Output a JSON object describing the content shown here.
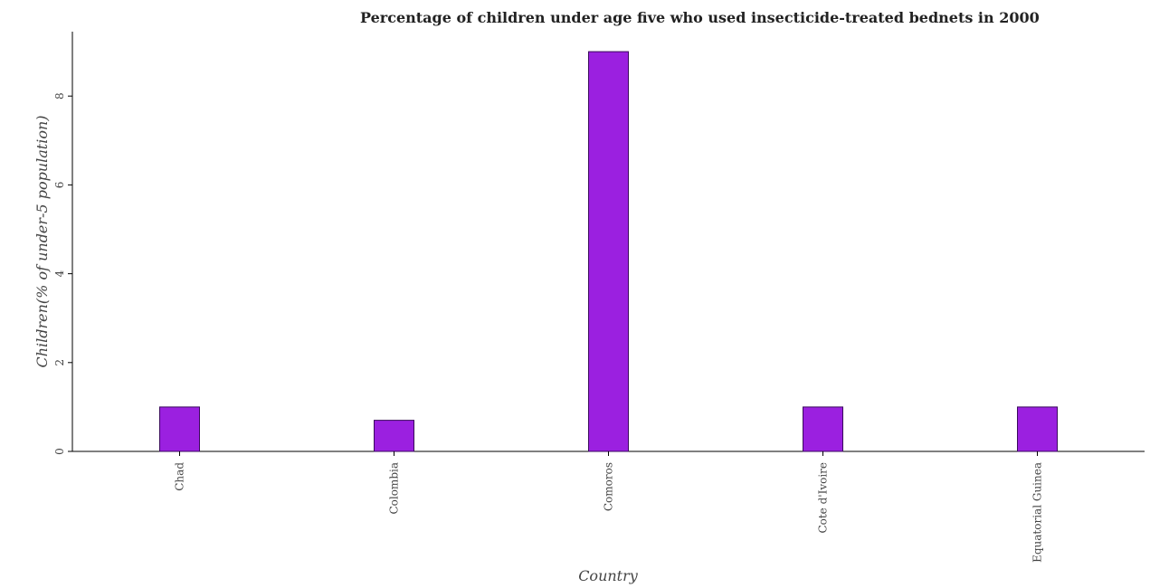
{
  "chart_data": {
    "type": "bar",
    "title": "Percentage of children under age five who used insecticide-treated bednets in 2000",
    "xlabel": "Country",
    "ylabel": "Children(% of under-5 population)",
    "categories": [
      "Chad",
      "Colombia",
      "Comoros",
      "Cote d'Ivoire",
      "Equatorial Guinea"
    ],
    "values": [
      1.0,
      0.7,
      9.0,
      1.0,
      1.0
    ],
    "ylim": [
      0,
      9.45
    ],
    "yticks": [
      0,
      2,
      4,
      6,
      8
    ],
    "ytick_labels": [
      "0",
      "2",
      "4",
      "6",
      "8"
    ],
    "grid": false,
    "legend": "none",
    "colors": {
      "bar_fill": "#9b20e0",
      "bar_edge": "#3a0a5c",
      "axis": "#000000"
    }
  }
}
